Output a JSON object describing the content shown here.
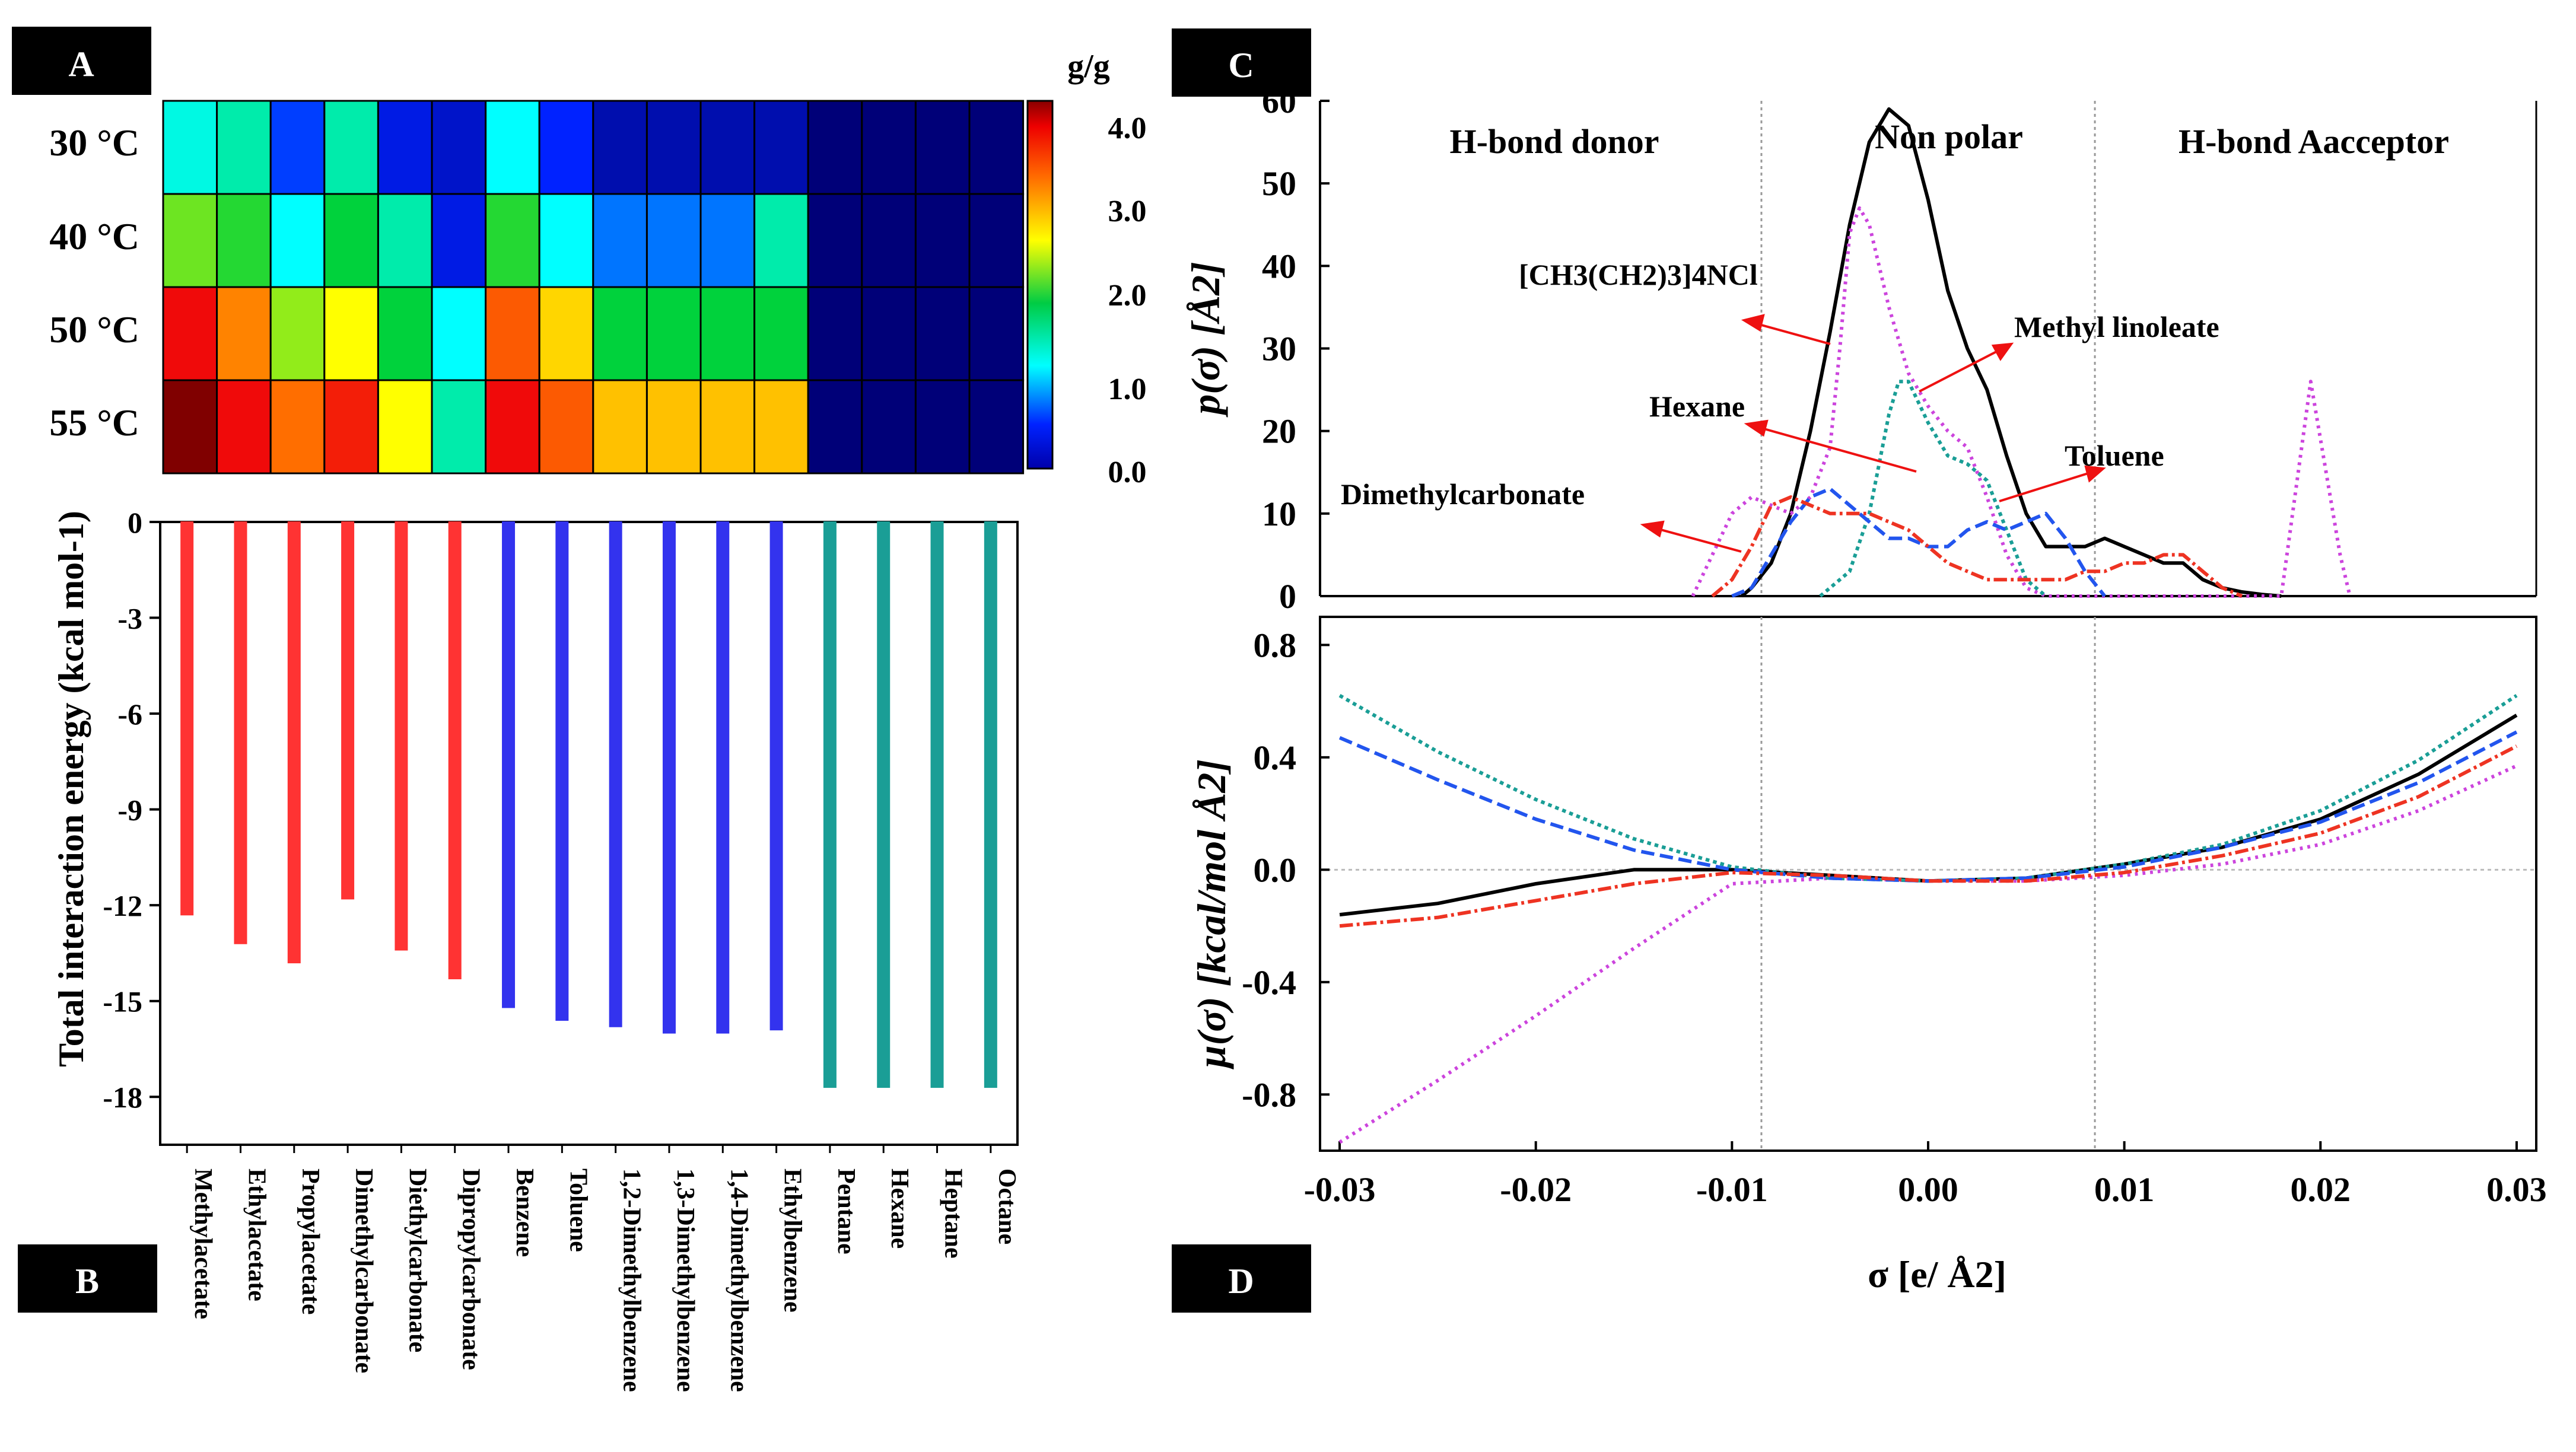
{
  "panels": {
    "a": "A",
    "b": "B",
    "c": "C",
    "d": "D"
  },
  "heatmap": {
    "unit": "g/g",
    "rows": [
      "30 °C",
      "40 °C",
      "50 °C",
      "55 °C"
    ],
    "colorbar_ticks": [
      "4.0",
      "3.0",
      "2.0",
      "1.0",
      "0.0"
    ],
    "values": [
      [
        1.4,
        1.6,
        0.6,
        1.6,
        0.4,
        0.3,
        1.3,
        0.5,
        0.2,
        0.2,
        0.2,
        0.2,
        0.0,
        0.0,
        0.0,
        0.0
      ],
      [
        2.3,
        2.1,
        1.3,
        2.0,
        1.6,
        0.4,
        2.1,
        1.3,
        0.8,
        0.8,
        0.8,
        1.6,
        0.0,
        0.0,
        0.0,
        0.0
      ],
      [
        3.9,
        3.3,
        2.4,
        2.7,
        2.0,
        1.3,
        3.5,
        2.9,
        2.0,
        2.0,
        2.0,
        2.0,
        0.0,
        0.0,
        0.0,
        0.0
      ],
      [
        4.4,
        3.9,
        3.4,
        3.8,
        2.7,
        1.6,
        3.9,
        3.5,
        3.0,
        3.0,
        3.0,
        3.0,
        0.0,
        0.0,
        0.0,
        0.0
      ]
    ]
  },
  "chart_data": [
    {
      "type": "bar",
      "title": "",
      "xlabel": "",
      "ylabel": "Total interaction energy (kcal mol-1)",
      "ylim": [
        -19.5,
        0
      ],
      "yticks": [
        "0",
        "-3",
        "-6",
        "-9",
        "-12",
        "-15",
        "-18"
      ],
      "categories": [
        "Methylacetate",
        "Ethylacetate",
        "Propylacetate",
        "Dimethylcarbonate",
        "Diethylcarbonate",
        "Dipropylcarbonate",
        "Benzene",
        "Toluene",
        "1,2-Dimethylbenzene",
        "1,3-Dimethylbenzene",
        "1,4-Dimethylbenzene",
        "Ethylbenzene",
        "Pentane",
        "Hexane",
        "Heptane",
        "Octane"
      ],
      "values": [
        -12.3,
        -13.2,
        -13.8,
        -11.8,
        -13.4,
        -14.3,
        -15.2,
        -15.6,
        -15.8,
        -16.0,
        -16.0,
        -15.9,
        -17.7,
        -17.7,
        -17.7,
        -17.7
      ],
      "colors": [
        "#ff3333",
        "#ff3333",
        "#ff3333",
        "#ff3333",
        "#ff3333",
        "#ff3333",
        "#3333ee",
        "#3333ee",
        "#3333ee",
        "#3333ee",
        "#3333ee",
        "#3333ee",
        "#1a9e96",
        "#1a9e96",
        "#1a9e96",
        "#1a9e96"
      ]
    },
    {
      "type": "line",
      "ylabel": "p(σ) [Å2]",
      "ylim": [
        0,
        60
      ],
      "xlim": [
        -0.03,
        0.03
      ],
      "yticks": [
        "0",
        "10",
        "20",
        "30",
        "40",
        "50",
        "60"
      ],
      "regions": [
        "H-bond donor",
        "Non polar",
        "H-bond Aacceptor"
      ],
      "annotations": [
        "[CH3(CH2)3]4NCl",
        "Methyl linoleate",
        "Hexane",
        "Toluene",
        "Dimethylcarbonate"
      ],
      "series": [
        {
          "name": "[CH3(CH2)3]4NCl",
          "color": "#000000",
          "dash": "",
          "x": [
            -0.0095,
            -0.009,
            -0.008,
            -0.007,
            -0.006,
            -0.005,
            -0.004,
            -0.003,
            -0.002,
            -0.001,
            0.0,
            0.001,
            0.002,
            0.003,
            0.004,
            0.005,
            0.006,
            0.007,
            0.008,
            0.009,
            0.01,
            0.011,
            0.012,
            0.013,
            0.014,
            0.015,
            0.016,
            0.017,
            0.018
          ],
          "y": [
            0,
            1,
            4,
            10,
            20,
            32,
            45,
            55,
            59,
            57,
            48,
            37,
            30,
            25,
            17,
            10,
            6,
            6,
            6,
            7,
            6,
            5,
            4,
            4,
            2,
            1,
            0.5,
            0.2,
            0
          ]
        },
        {
          "name": "Methyl linoleate",
          "color": "#cc44dd",
          "dash": "3,5",
          "x": [
            -0.012,
            -0.011,
            -0.01,
            -0.009,
            -0.008,
            -0.007,
            -0.006,
            -0.005,
            -0.0045,
            -0.004,
            -0.0035,
            -0.003,
            -0.002,
            -0.001,
            0.0,
            0.001,
            0.002,
            0.003,
            0.004,
            0.005,
            0.006,
            0.007,
            0.018,
            0.0195,
            0.021,
            0.0215
          ],
          "y": [
            0,
            5,
            10,
            12,
            11,
            10,
            12,
            18,
            30,
            44,
            47,
            45,
            35,
            27,
            23,
            20,
            18,
            12,
            5,
            1,
            0,
            0,
            0,
            26,
            5,
            0
          ]
        },
        {
          "name": "Hexane",
          "color": "#1a9e96",
          "dash": "4,4",
          "x": [
            -0.0055,
            -0.004,
            -0.003,
            -0.002,
            -0.0015,
            -0.001,
            0.0,
            0.001,
            0.002,
            0.003,
            0.004,
            0.005,
            0.006
          ],
          "y": [
            0,
            3,
            10,
            22,
            26,
            26,
            21,
            17,
            16,
            14,
            8,
            2,
            0
          ]
        },
        {
          "name": "Toluene",
          "color": "#2255ee",
          "dash": "14,6",
          "x": [
            -0.01,
            -0.009,
            -0.008,
            -0.007,
            -0.006,
            -0.005,
            -0.004,
            -0.003,
            -0.002,
            -0.001,
            0.0,
            0.001,
            0.002,
            0.003,
            0.004,
            0.005,
            0.006,
            0.007,
            0.008,
            0.009
          ],
          "y": [
            0,
            1,
            5,
            9,
            12,
            13,
            11,
            9,
            7,
            7,
            6,
            6,
            8,
            9,
            8,
            9,
            10,
            7,
            3,
            0
          ]
        },
        {
          "name": "Dimethylcarbonate",
          "color": "#ee3322",
          "dash": "14,4,3,4",
          "x": [
            -0.011,
            -0.01,
            -0.009,
            -0.008,
            -0.007,
            -0.006,
            -0.005,
            -0.004,
            -0.003,
            -0.002,
            -0.001,
            0.0,
            0.001,
            0.002,
            0.003,
            0.004,
            0.005,
            0.006,
            0.007,
            0.008,
            0.009,
            0.01,
            0.011,
            0.012,
            0.013,
            0.014,
            0.015,
            0.016
          ],
          "y": [
            0,
            2,
            6,
            11,
            12,
            11,
            10,
            10,
            10,
            9,
            8,
            6,
            4,
            3,
            2,
            2,
            2,
            2,
            2,
            3,
            3,
            4,
            4,
            5,
            5,
            3,
            1,
            0
          ]
        }
      ]
    },
    {
      "type": "line",
      "ylabel": "μ(σ) [kcal/mol Å2]",
      "xlabel": "σ [e/ Å2]",
      "xlim": [
        -0.031,
        0.031
      ],
      "ylim": [
        -1.0,
        0.9
      ],
      "xticks": [
        "-0.03",
        "-0.02",
        "-0.01",
        "0.00",
        "0.01",
        "0.02",
        "0.03"
      ],
      "yticks": [
        "0.8",
        "0.4",
        "0.0",
        "-0.4",
        "-0.8"
      ],
      "series": [
        {
          "name": "[CH3(CH2)3]4NCl",
          "color": "#000000",
          "dash": "",
          "x": [
            -0.03,
            -0.025,
            -0.02,
            -0.015,
            -0.01,
            -0.005,
            0.0,
            0.005,
            0.01,
            0.015,
            0.02,
            0.025,
            0.03
          ],
          "y": [
            -0.16,
            -0.12,
            -0.05,
            0.0,
            0.0,
            -0.02,
            -0.04,
            -0.03,
            0.02,
            0.08,
            0.18,
            0.34,
            0.55
          ]
        },
        {
          "name": "Methyl linoleate",
          "color": "#cc44dd",
          "dash": "3,5",
          "x": [
            -0.03,
            -0.025,
            -0.02,
            -0.015,
            -0.01,
            -0.005,
            0.0,
            0.005,
            0.01,
            0.015,
            0.02,
            0.025,
            0.03
          ],
          "y": [
            -0.97,
            -0.75,
            -0.52,
            -0.28,
            -0.05,
            -0.03,
            -0.04,
            -0.04,
            -0.02,
            0.02,
            0.09,
            0.21,
            0.37
          ]
        },
        {
          "name": "Hexane",
          "color": "#1a9e96",
          "dash": "4,4",
          "x": [
            -0.03,
            -0.025,
            -0.02,
            -0.015,
            -0.01,
            -0.005,
            0.0,
            0.005,
            0.01,
            0.015,
            0.02,
            0.025,
            0.03
          ],
          "y": [
            0.62,
            0.42,
            0.25,
            0.11,
            0.01,
            -0.03,
            -0.04,
            -0.03,
            0.02,
            0.09,
            0.21,
            0.39,
            0.62
          ]
        },
        {
          "name": "Toluene",
          "color": "#2255ee",
          "dash": "14,6",
          "x": [
            -0.03,
            -0.025,
            -0.02,
            -0.015,
            -0.01,
            -0.005,
            0.0,
            0.005,
            0.01,
            0.015,
            0.02,
            0.025,
            0.03
          ],
          "y": [
            0.47,
            0.32,
            0.18,
            0.07,
            0.0,
            -0.03,
            -0.04,
            -0.03,
            0.01,
            0.08,
            0.17,
            0.31,
            0.49
          ]
        },
        {
          "name": "Dimethylcarbonate",
          "color": "#ee3322",
          "dash": "14,4,3,4",
          "x": [
            -0.03,
            -0.025,
            -0.02,
            -0.015,
            -0.01,
            -0.005,
            0.0,
            0.005,
            0.01,
            0.015,
            0.02,
            0.025,
            0.03
          ],
          "y": [
            -0.2,
            -0.17,
            -0.11,
            -0.05,
            -0.01,
            -0.02,
            -0.04,
            -0.04,
            -0.01,
            0.05,
            0.13,
            0.26,
            0.44
          ]
        }
      ]
    }
  ]
}
